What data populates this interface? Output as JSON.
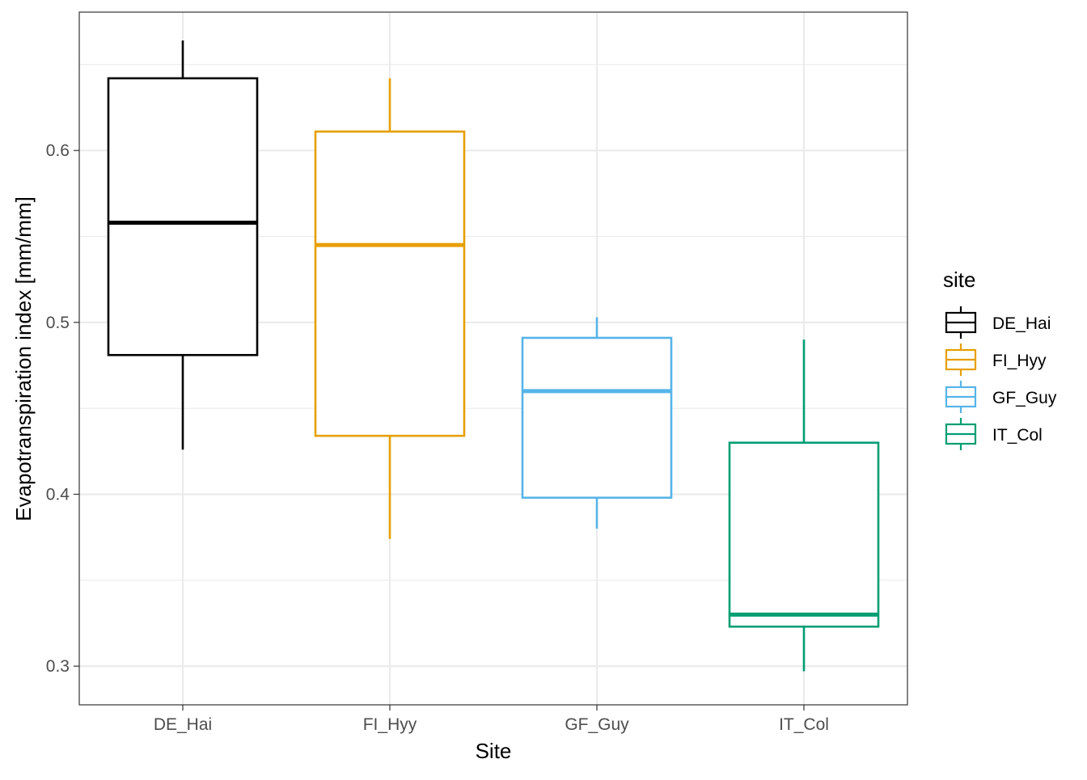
{
  "chart_data": {
    "type": "boxplot",
    "xlabel": "Site",
    "ylabel": "Evapotranspiration index [mm/mm]",
    "categories": [
      "DE_Hai",
      "FI_Hyy",
      "GF_Guy",
      "IT_Col"
    ],
    "ylim": [
      0.2775,
      0.6805
    ],
    "yticks": [
      0.3,
      0.4,
      0.5,
      0.6
    ],
    "ytick_labels": [
      "0.3",
      "0.4",
      "0.5",
      "0.6"
    ],
    "grid": true,
    "legend": {
      "title": "site",
      "position": "right",
      "entries": [
        "DE_Hai",
        "FI_Hyy",
        "GF_Guy",
        "IT_Col"
      ]
    },
    "series": [
      {
        "category": "DE_Hai",
        "color": "#000000",
        "whisker_low": 0.426,
        "q1": 0.481,
        "median": 0.558,
        "q3": 0.642,
        "whisker_high": 0.664
      },
      {
        "category": "FI_Hyy",
        "color": "#E69F00",
        "whisker_low": 0.374,
        "q1": 0.434,
        "median": 0.545,
        "q3": 0.611,
        "whisker_high": 0.642
      },
      {
        "category": "GF_Guy",
        "color": "#56B4E9",
        "whisker_low": 0.38,
        "q1": 0.398,
        "median": 0.46,
        "q3": 0.491,
        "whisker_high": 0.503
      },
      {
        "category": "IT_Col",
        "color": "#009E73",
        "whisker_low": 0.297,
        "q1": 0.323,
        "median": 0.33,
        "q3": 0.43,
        "whisker_high": 0.49
      }
    ]
  }
}
